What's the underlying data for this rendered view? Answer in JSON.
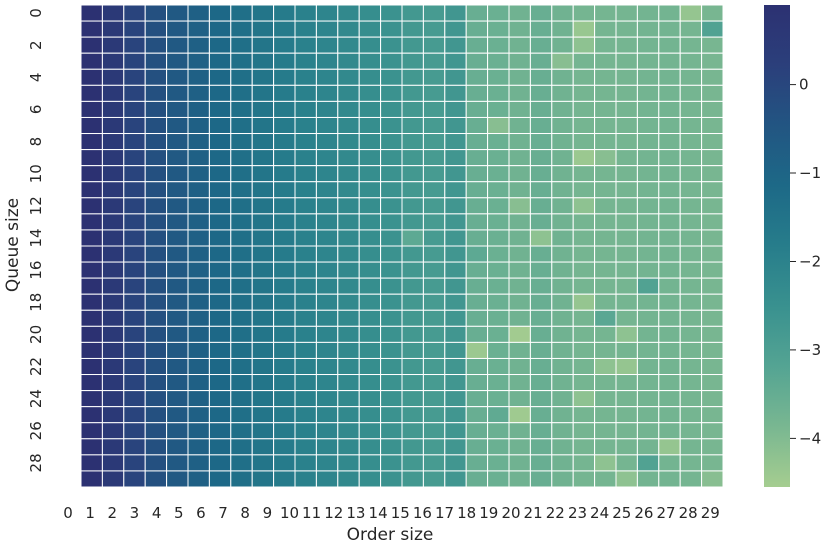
{
  "chart_data": {
    "type": "heatmap",
    "title": "",
    "xlabel": "Order size",
    "ylabel": "Queue size",
    "colormap": "crest",
    "colormap_stops": [
      "#a5cd90",
      "#79b791",
      "#54a493",
      "#39918f",
      "#277d8b",
      "#1d6987",
      "#225582",
      "#2b3f7b",
      "#2c3172"
    ],
    "cell_edge_color": "#ffffff",
    "vmin": -4.55,
    "vmax": 0.9,
    "x_tick_labels": [
      "0",
      "1",
      "2",
      "3",
      "4",
      "5",
      "6",
      "7",
      "8",
      "9",
      "10",
      "11",
      "12",
      "13",
      "14",
      "15",
      "16",
      "17",
      "18",
      "19",
      "20",
      "21",
      "22",
      "23",
      "24",
      "25",
      "26",
      "27",
      "28",
      "29"
    ],
    "y_tick_labels": [
      "0",
      "2",
      "4",
      "6",
      "8",
      "10",
      "12",
      "14",
      "16",
      "18",
      "20",
      "22",
      "24",
      "26",
      "28"
    ],
    "colorbar_ticks": [
      0,
      -1,
      -2,
      -3,
      -4
    ],
    "colorbar_tick_labels": [
      "0",
      "−1",
      "−2",
      "−3",
      "−4"
    ],
    "n_rows": 30,
    "n_cols": 30,
    "column_values": [
      0.9,
      0.5,
      0.05,
      -0.3,
      -0.6,
      -0.85,
      -1.1,
      -1.35,
      -1.55,
      -1.75,
      -1.95,
      -2.1,
      -2.25,
      -2.4,
      -2.55,
      -2.75,
      -2.85,
      -2.7,
      -3.55,
      -3.6,
      -3.7,
      -3.55,
      -3.7,
      -3.8,
      -3.8,
      -3.8,
      -3.75,
      -3.75,
      -3.8,
      -3.85
    ],
    "cell_overrides": [
      {
        "row": 0,
        "col": 28,
        "value": -4.3
      },
      {
        "row": 1,
        "col": 23,
        "value": -4.35
      },
      {
        "row": 1,
        "col": 29,
        "value": -3.1
      },
      {
        "row": 2,
        "col": 23,
        "value": -4.2
      },
      {
        "row": 3,
        "col": 22,
        "value": -4.1
      },
      {
        "row": 7,
        "col": 19,
        "value": -4.1
      },
      {
        "row": 9,
        "col": 23,
        "value": -4.4
      },
      {
        "row": 9,
        "col": 24,
        "value": -4.1
      },
      {
        "row": 12,
        "col": 20,
        "value": -4.1
      },
      {
        "row": 12,
        "col": 23,
        "value": -4.2
      },
      {
        "row": 14,
        "col": 15,
        "value": -3.35
      },
      {
        "row": 14,
        "col": 21,
        "value": -4.2
      },
      {
        "row": 15,
        "col": 18,
        "value": -3.35
      },
      {
        "row": 17,
        "col": 26,
        "value": -3.1
      },
      {
        "row": 18,
        "col": 23,
        "value": -4.3
      },
      {
        "row": 19,
        "col": 24,
        "value": -3.3
      },
      {
        "row": 20,
        "col": 20,
        "value": -4.5
      },
      {
        "row": 20,
        "col": 25,
        "value": -4.2
      },
      {
        "row": 21,
        "col": 18,
        "value": -4.4
      },
      {
        "row": 22,
        "col": 24,
        "value": -4.2
      },
      {
        "row": 22,
        "col": 25,
        "value": -4.3
      },
      {
        "row": 24,
        "col": 23,
        "value": -4.2
      },
      {
        "row": 25,
        "col": 20,
        "value": -4.45
      },
      {
        "row": 25,
        "col": 19,
        "value": -3.4
      },
      {
        "row": 27,
        "col": 27,
        "value": -4.3
      },
      {
        "row": 28,
        "col": 26,
        "value": -3.1
      },
      {
        "row": 28,
        "col": 24,
        "value": -4.2
      },
      {
        "row": 29,
        "col": 25,
        "value": -4.2
      },
      {
        "row": 29,
        "col": 29,
        "value": -4.1
      }
    ]
  }
}
